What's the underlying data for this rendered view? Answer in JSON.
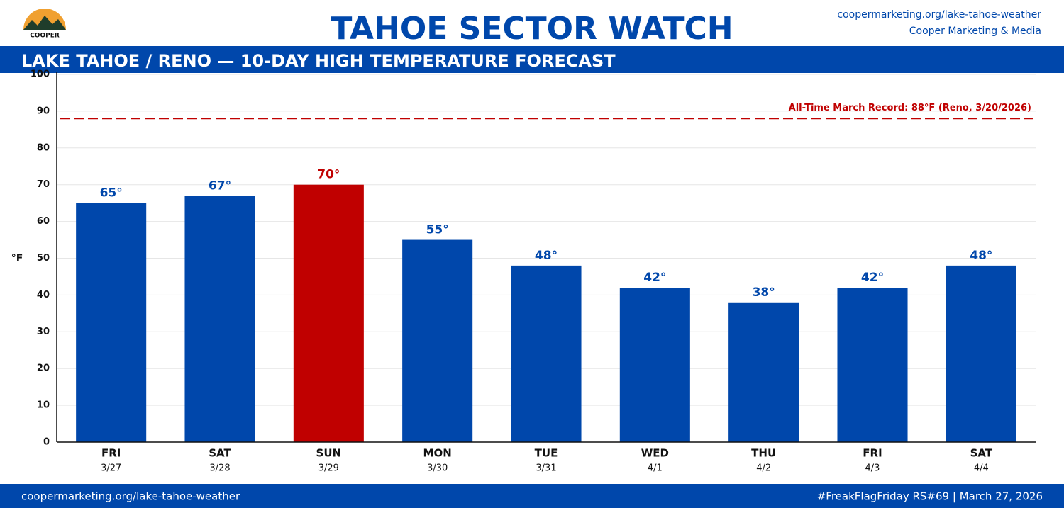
{
  "header": {
    "title": "TAHOE SECTOR WATCH",
    "logo_text": "COOPER",
    "link": "coopermarketing.org/lake-tahoe-weather",
    "org": "Cooper Marketing & Media"
  },
  "footer": {
    "left": "coopermarketing.org/lake-tahoe-weather",
    "right": "#FreakFlagFriday RS#69 | March 27, 2026"
  },
  "chart_data": {
    "type": "bar",
    "title": "LAKE TAHOE / RENO — 10-DAY HIGH TEMPERATURE FORECAST",
    "y_label": "°F",
    "categories": [
      "FRI",
      "SAT",
      "SUN",
      "MON",
      "TUE",
      "WED",
      "THU",
      "FRI",
      "SAT"
    ],
    "dates": [
      "3/27",
      "3/28",
      "3/29",
      "3/30",
      "3/31",
      "4/1",
      "4/2",
      "4/3",
      "4/4"
    ],
    "values": [
      65,
      67,
      70,
      55,
      48,
      42,
      38,
      42,
      48
    ],
    "value_labels": [
      "65°",
      "67°",
      "70°",
      "55°",
      "48°",
      "42°",
      "38°",
      "42°",
      "48°"
    ],
    "colors": [
      "#0047ab",
      "#0047ab",
      "#c00000",
      "#0047ab",
      "#0047ab",
      "#0047ab",
      "#0047ab",
      "#0047ab",
      "#0047ab"
    ],
    "ylim": [
      0,
      100
    ],
    "yticks": [
      0,
      10,
      20,
      30,
      40,
      50,
      60,
      70,
      80,
      90,
      100
    ],
    "grid": true,
    "reference_line": {
      "value": 88,
      "label": "All-Time March Record: 88°F (Reno, 3/20/2026)",
      "color": "#c00000"
    }
  }
}
